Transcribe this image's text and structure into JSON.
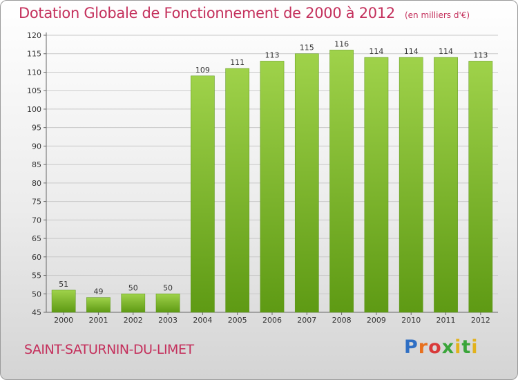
{
  "header": {
    "title": "Dotation Globale de Fonctionnement de 2000 à 2012",
    "unit": "(en milliers d'€)"
  },
  "footer": {
    "commune": "SAINT-SATURNIN-DU-LIMET",
    "brand": "Proxiti"
  },
  "colors": {
    "title": "#c4305c",
    "bar_top": "#9fd24a",
    "bar_bottom": "#5e9a14",
    "grid": "#c8c8c8"
  },
  "chart_data": {
    "type": "bar",
    "title": "Dotation Globale de Fonctionnement de 2000 à 2012",
    "xlabel": "",
    "ylabel": "",
    "categories": [
      "2000",
      "2001",
      "2002",
      "2003",
      "2004",
      "2005",
      "2006",
      "2007",
      "2008",
      "2009",
      "2010",
      "2011",
      "2012"
    ],
    "values": [
      51,
      49,
      50,
      50,
      109,
      111,
      113,
      115,
      116,
      114,
      114,
      114,
      113
    ],
    "ylim": [
      45,
      120
    ],
    "yticks": [
      45,
      50,
      55,
      60,
      65,
      70,
      75,
      80,
      85,
      90,
      95,
      100,
      105,
      110,
      115,
      120
    ],
    "grid": true,
    "data_labels": true
  }
}
